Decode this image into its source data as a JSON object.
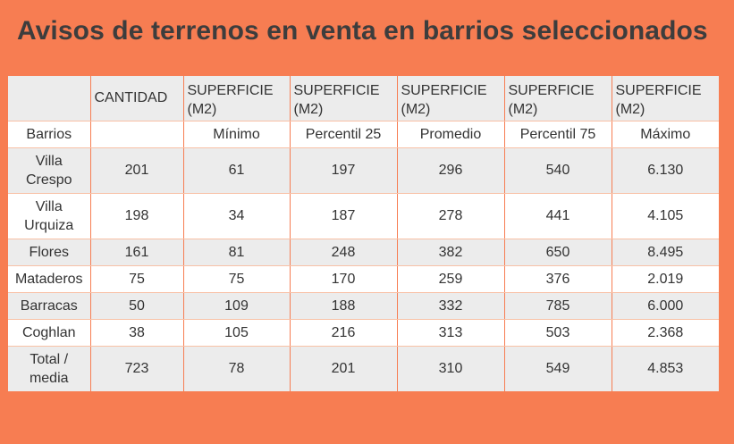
{
  "title": "Avisos de terrenos en venta en barrios seleccionados",
  "colors": {
    "background": "#F77D52",
    "row_grey": "#ECECEC",
    "row_white": "#FFFFFF",
    "text": "#333333"
  },
  "table": {
    "header": [
      "",
      "CANTIDAD",
      "SUPERFICIE (M2)",
      "SUPERFICIE (M2)",
      "SUPERFICIE (M2)",
      "SUPERFICIE (M2)",
      "SUPERFICIE (M2)"
    ],
    "subheader": [
      "Barrios",
      "",
      "Mínimo",
      "Percentil 25",
      "Promedio",
      "Percentil 75",
      "Máximo"
    ],
    "rows": [
      [
        "Villa Crespo",
        "201",
        "61",
        "197",
        "296",
        "540",
        "6.130"
      ],
      [
        "Villa Urquiza",
        "198",
        "34",
        "187",
        "278",
        "441",
        "4.105"
      ],
      [
        "Flores",
        "161",
        "81",
        "248",
        "382",
        "650",
        "8.495"
      ],
      [
        "Mataderos",
        "75",
        "75",
        "170",
        "259",
        "376",
        "2.019"
      ],
      [
        "Barracas",
        "50",
        "109",
        "188",
        "332",
        "785",
        "6.000"
      ],
      [
        "Coghlan",
        "38",
        "105",
        "216",
        "313",
        "503",
        "2.368"
      ],
      [
        "Total / media",
        "723",
        "78",
        "201",
        "310",
        "549",
        "4.853"
      ]
    ]
  }
}
